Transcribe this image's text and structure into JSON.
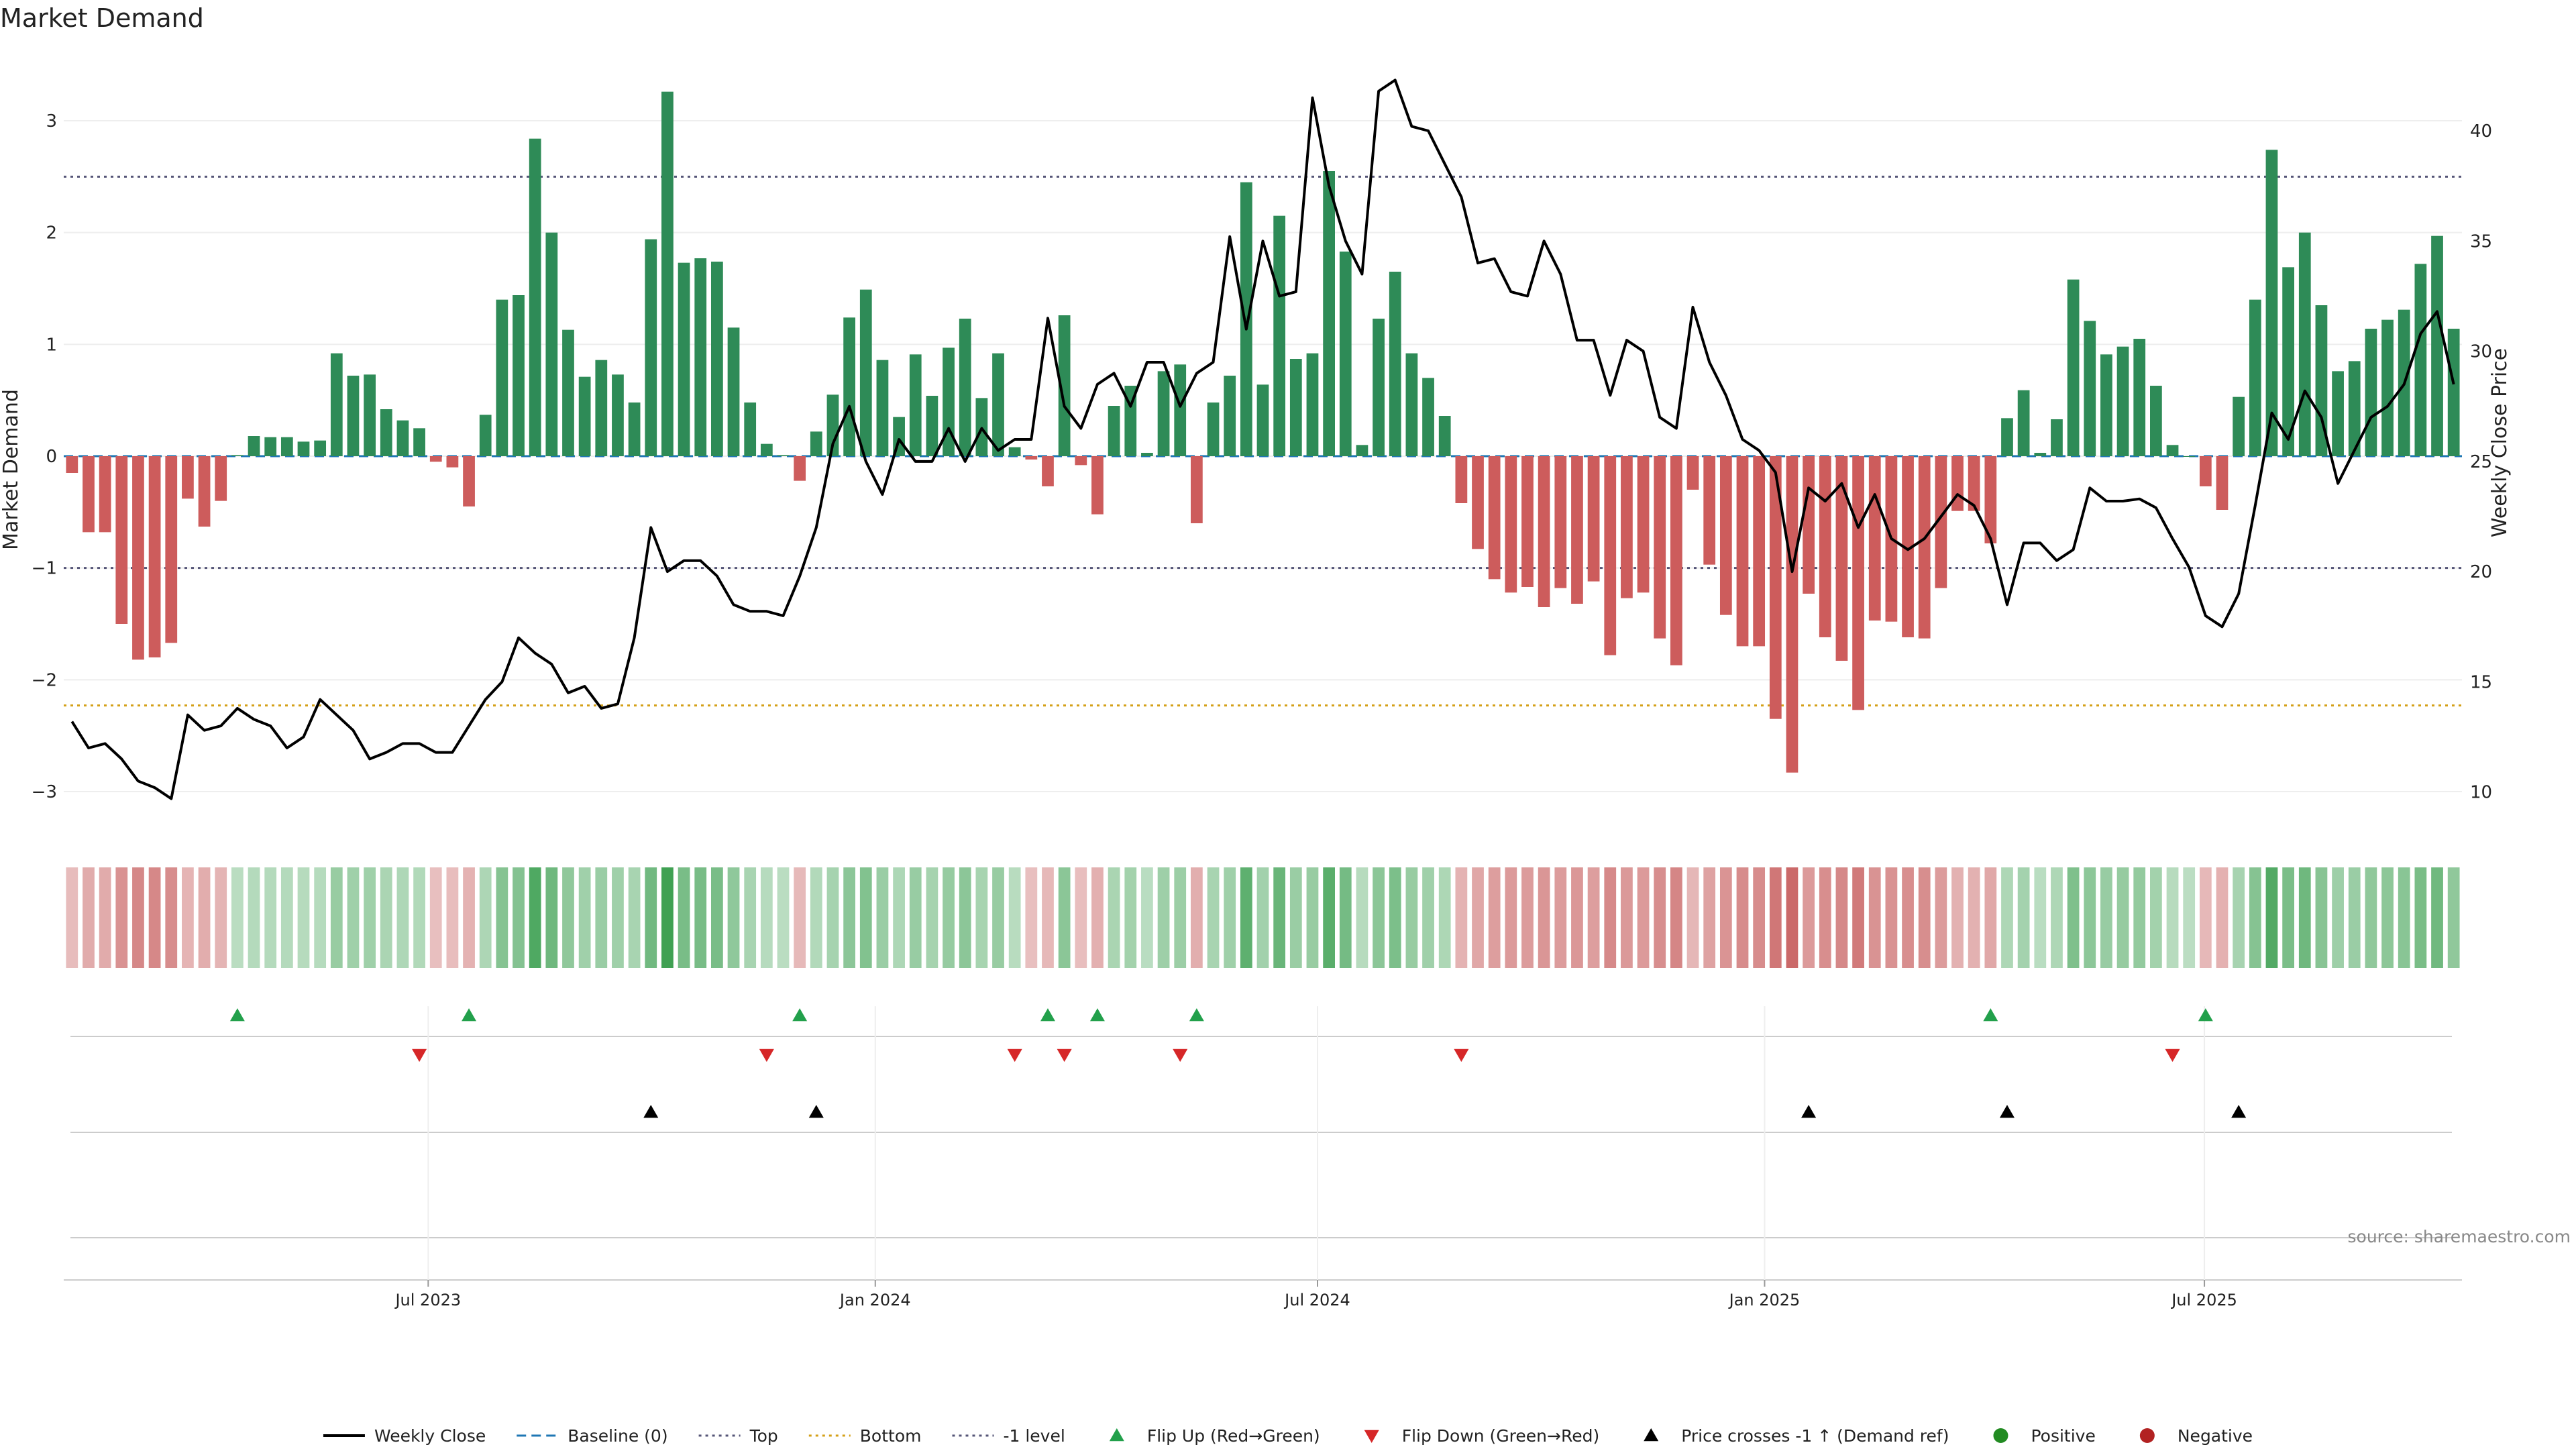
{
  "title": "Market Demand",
  "source_text": "source: sharemaestro.com",
  "colors": {
    "pos_bar": "#2e8b57",
    "neg_bar": "#cd5c5c",
    "price_line": "#000000",
    "baseline": "#1f77b4",
    "top_line": "#555577",
    "bottom_line": "#d4a017",
    "minus1_line": "#555577",
    "flip_up": "#22a04b",
    "flip_down": "#d62728",
    "cross": "#000000",
    "positive": "#228b22",
    "negative": "#b22222"
  },
  "chart_data": {
    "type": "bar+line",
    "frequency": "weekly",
    "title": "Market Demand",
    "y_label": "Market Demand",
    "y2_label": "Weekly Close Price",
    "y_range": [
      -3.3,
      3.6
    ],
    "y_ticks": [
      -3,
      -2,
      -1,
      0,
      1,
      2,
      3
    ],
    "y2_range": [
      8.5,
      43.5
    ],
    "y2_ticks": [
      10,
      15,
      20,
      25,
      30,
      35,
      40
    ],
    "x_range": [
      "2023-02-01",
      "2025-10-15"
    ],
    "x_ticks": [
      {
        "date": "2023-07-01",
        "label": "Jul 2023"
      },
      {
        "date": "2024-01-01",
        "label": "Jan 2024"
      },
      {
        "date": "2024-07-01",
        "label": "Jul 2024"
      },
      {
        "date": "2025-01-01",
        "label": "Jan 2025"
      },
      {
        "date": "2025-07-01",
        "label": "Jul 2025"
      }
    ],
    "reference_lines": [
      {
        "name": "Top",
        "value": 2.5
      },
      {
        "name": "Bottom",
        "value": -2.23
      },
      {
        "name": "-1 level",
        "value": -1
      },
      {
        "name": "Baseline (0)",
        "value": 0
      }
    ],
    "demand": [
      -0.15,
      -0.68,
      -0.68,
      -1.5,
      -1.82,
      -1.8,
      -1.67,
      -0.38,
      -0.63,
      -0.4,
      0.01,
      0.18,
      0.17,
      0.17,
      0.13,
      0.14,
      0.92,
      0.72,
      0.73,
      0.42,
      0.32,
      0.25,
      -0.05,
      -0.1,
      -0.45,
      0.37,
      1.4,
      1.44,
      2.84,
      2.0,
      1.13,
      0.71,
      0.86,
      0.73,
      0.48,
      1.94,
      3.26,
      1.73,
      1.77,
      1.74,
      1.15,
      0.48,
      0.11,
      0.01,
      -0.22,
      0.22,
      0.55,
      1.24,
      1.49,
      0.86,
      0.35,
      0.91,
      0.54,
      0.97,
      1.23,
      0.52,
      0.92,
      0.08,
      -0.03,
      -0.27,
      1.26,
      -0.08,
      -0.52,
      0.45,
      0.63,
      0.03,
      0.76,
      0.82,
      -0.6,
      0.48,
      0.72,
      2.45,
      0.64,
      2.15,
      0.87,
      0.92,
      2.55,
      1.83,
      0.1,
      1.23,
      1.65,
      0.92,
      0.7,
      0.36,
      -0.42,
      -0.83,
      -1.1,
      -1.22,
      -1.17,
      -1.35,
      -1.18,
      -1.32,
      -1.12,
      -1.78,
      -1.27,
      -1.22,
      -1.63,
      -1.87,
      -0.3,
      -0.97,
      -1.42,
      -1.7,
      -1.7,
      -2.35,
      -2.83,
      -1.23,
      -1.62,
      -1.83,
      -2.27,
      -1.47,
      -1.48,
      -1.62,
      -1.63,
      -1.18,
      -0.49,
      -0.49,
      -0.78,
      0.34,
      0.59,
      0.03,
      0.33,
      1.58,
      1.21,
      0.91,
      0.98,
      1.05,
      0.63,
      0.1,
      0.0,
      -0.27,
      -0.48,
      0.53,
      1.4,
      2.74,
      1.69,
      2.0,
      1.35,
      0.76,
      0.85,
      1.14,
      1.22,
      1.31,
      1.72,
      1.97,
      1.14
    ],
    "weekly_close": [
      13.2,
      12.0,
      12.2,
      11.5,
      10.5,
      10.2,
      9.7,
      13.5,
      12.8,
      13.0,
      13.8,
      13.3,
      13.0,
      12.0,
      12.5,
      14.2,
      13.5,
      12.8,
      11.5,
      11.8,
      12.2,
      12.2,
      11.8,
      11.8,
      13.0,
      14.2,
      15.0,
      17.0,
      16.3,
      15.8,
      14.5,
      14.8,
      13.8,
      14.0,
      17.0,
      22.0,
      20.0,
      20.5,
      20.5,
      19.8,
      18.5,
      18.2,
      18.2,
      18.0,
      19.8,
      22.0,
      25.8,
      27.5,
      25.0,
      23.5,
      26.0,
      25.0,
      25.0,
      26.5,
      25.0,
      26.5,
      25.5,
      26.0,
      26.0,
      31.5,
      27.5,
      26.5,
      28.5,
      29.0,
      27.5,
      29.5,
      29.5,
      27.5,
      29.0,
      29.5,
      35.2,
      31.0,
      35.0,
      32.5,
      32.7,
      41.5,
      37.5,
      35.0,
      33.5,
      41.8,
      42.3,
      40.2,
      40.0,
      38.5,
      37.0,
      34.0,
      34.2,
      32.7,
      32.5,
      35.0,
      33.5,
      30.5,
      30.5,
      28.0,
      30.5,
      30.0,
      27.0,
      26.5,
      32.0,
      29.5,
      28.0,
      26.0,
      25.5,
      24.5,
      20.0,
      23.8,
      23.2,
      24.0,
      22.0,
      23.5,
      21.5,
      21.0,
      21.5,
      22.5,
      23.5,
      23.0,
      21.5,
      18.5,
      21.3,
      21.3,
      20.5,
      21.0,
      23.8,
      23.2,
      23.2,
      23.3,
      22.9,
      21.5,
      20.2,
      18.0,
      17.5,
      19.0,
      23.0,
      27.2,
      26.0,
      28.2,
      27.0,
      24.0,
      25.5,
      27.0,
      27.5,
      28.5,
      30.8,
      31.8,
      28.5
    ],
    "flip_up_weeks": [
      10,
      24,
      44,
      59,
      62,
      68,
      116,
      129
    ],
    "flip_down_weeks": [
      21,
      42,
      57,
      60,
      67,
      84,
      127
    ],
    "price_cross_weeks": [
      35,
      45,
      105,
      117,
      131
    ],
    "series": [
      {
        "name": "Weekly Close",
        "kind": "line"
      },
      {
        "name": "Baseline (0)",
        "kind": "dashed"
      },
      {
        "name": "Top",
        "kind": "dotted"
      },
      {
        "name": "Bottom",
        "kind": "dotted"
      },
      {
        "name": "-1 level",
        "kind": "dotted"
      },
      {
        "name": "Flip Up (Red→Green)",
        "kind": "marker-up"
      },
      {
        "name": "Flip Down (Green→Red)",
        "kind": "marker-down"
      },
      {
        "name": "Price crosses -1 ↑ (Demand ref)",
        "kind": "marker-up"
      },
      {
        "name": "Positive",
        "kind": "dot"
      },
      {
        "name": "Negative",
        "kind": "dot"
      }
    ],
    "legend_position": "bottom-center",
    "grid": true
  }
}
